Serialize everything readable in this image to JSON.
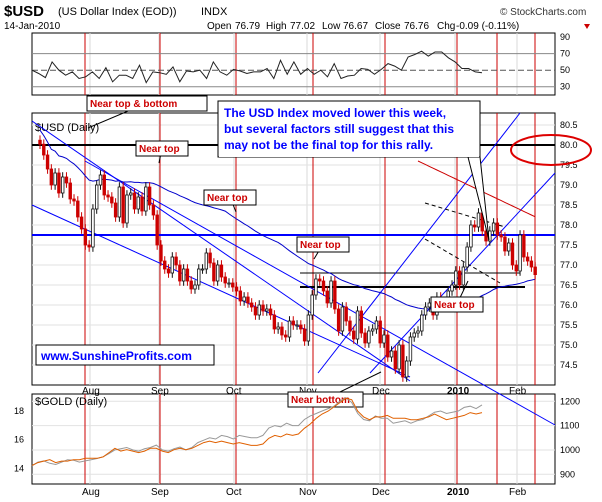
{
  "header": {
    "symbol": "$USD",
    "name": "(US Dollar Index (EOD))",
    "exchange": "INDX",
    "date": "14-Jan-2010",
    "open_label": "Open",
    "open": "76.79",
    "high_label": "High",
    "high": "77.02",
    "low_label": "Low",
    "low": "76.67",
    "close_label": "Close",
    "close": "76.76",
    "chg_label": "Chg",
    "chg": "-0.09 (-0.11%)",
    "copyright": "© StockCharts.com"
  },
  "colors": {
    "up": "#111111",
    "down": "#cc0000",
    "ma_blue": "#0000cc",
    "ma_red": "#cc0000",
    "trend_blue": "#0000ff",
    "annot_red": "#cc0000",
    "gold": "#999999",
    "ratio": "#e06000"
  },
  "chart_data": [
    {
      "type": "line",
      "panel": "rsi",
      "yaxis_ticks": [
        "90",
        "70",
        "50",
        "30"
      ],
      "ylim": [
        20,
        95
      ],
      "values": [
        50,
        46,
        41,
        60,
        50,
        44,
        48,
        40,
        42,
        48,
        40,
        53,
        36,
        44,
        44,
        40,
        56,
        35,
        48,
        47,
        45,
        54,
        36,
        49,
        48,
        50,
        40,
        60,
        48,
        44,
        51,
        49,
        46,
        48,
        48,
        52,
        40,
        62,
        45,
        60,
        45,
        52,
        45,
        50,
        42,
        58,
        40,
        43,
        44,
        52,
        51,
        45,
        51,
        58,
        55,
        50,
        66,
        69,
        73,
        67,
        72,
        72,
        65,
        60,
        52,
        52,
        48,
        47
      ]
    },
    {
      "type": "candlestick",
      "panel": "price",
      "legend": "$USD (Daily)",
      "yaxis_ticks": [
        "80.5",
        "80.0",
        "79.5",
        "79.0",
        "78.5",
        "78.0",
        "77.5",
        "77.0",
        "76.5",
        "76.0",
        "75.5",
        "75.0",
        "74.5"
      ],
      "ylim": [
        74.0,
        80.8
      ],
      "xaxis_ticks": [
        "Aug",
        "Sep",
        "Oct",
        "Nov",
        "Dec",
        "2010",
        "Feb"
      ],
      "closes": [
        80.02,
        79.75,
        79.4,
        79.0,
        79.3,
        78.8,
        79.2,
        79.05,
        78.65,
        78.6,
        78.2,
        77.9,
        77.5,
        77.45,
        78.4,
        79.0,
        79.25,
        78.75,
        78.7,
        78.55,
        78.2,
        78.95,
        78.05,
        78.75,
        78.8,
        78.4,
        78.7,
        78.35,
        78.95,
        78.5,
        78.25,
        77.5,
        77.1,
        76.9,
        76.8,
        77.2,
        77.0,
        76.6,
        76.9,
        76.6,
        76.4,
        76.5,
        76.9,
        76.9,
        77.3,
        77.05,
        76.6,
        77.0,
        76.7,
        76.55,
        76.55,
        76.45,
        76.35,
        76.1,
        76.2,
        76.05,
        75.95,
        75.75,
        76.0,
        75.85,
        75.9,
        75.75,
        75.4,
        75.45,
        75.25,
        75.2,
        75.6,
        75.5,
        75.5,
        75.4,
        75.1,
        75.75,
        76.25,
        76.65,
        76.6,
        76.35,
        76.05,
        76.6,
        75.9,
        75.35,
        75.95,
        75.6,
        75.35,
        75.15,
        75.85,
        75.3,
        75.05,
        75.35,
        75.4,
        75.6,
        75.05,
        75.25,
        74.7,
        74.85,
        74.4,
        75.0,
        74.2,
        74.6,
        75.2,
        75.3,
        75.35,
        75.75,
        75.95,
        76.05,
        75.75,
        76.2,
        75.95,
        76.05,
        76.35,
        76.5,
        76.85,
        76.5,
        76.95,
        77.45,
        78.0,
        77.95,
        78.3,
        77.85,
        77.6,
        77.85,
        78.05,
        77.75,
        77.7,
        77.35,
        77.55,
        77.0,
        76.85,
        77.75,
        77.2,
        77.1,
        76.95,
        76.76
      ],
      "horizontal_lines": [
        80.0,
        77.75,
        76.8,
        76.45
      ],
      "annotations": [
        "Near top & bottom",
        "Near top",
        "Near top",
        "Near top",
        "Near top",
        "Near bottom"
      ],
      "comment": [
        "The USD Index moved lower this week,",
        "but several factors still suggest that this",
        "may not be the final top for this rally."
      ],
      "watermark": "www.SunshineProfits.com"
    },
    {
      "type": "line",
      "panel": "gold",
      "legend": "$GOLD (Daily)",
      "yaxis_ticks": [
        "1200",
        "1100",
        "1000",
        "900"
      ],
      "ylim": [
        860,
        1230
      ],
      "left_ticks": [
        "18",
        "16",
        "14"
      ],
      "left_ylim": [
        12.9,
        19.2
      ],
      "xaxis_ticks": [
        "Aug",
        "Sep",
        "Oct",
        "Nov",
        "Dec",
        "2010",
        "Feb"
      ],
      "series": [
        {
          "values": [
            935,
            950,
            955,
            945,
            940,
            950,
            960,
            958,
            950,
            955,
            960,
            965,
            972,
            985,
            1000,
            1005,
            1010,
            1000,
            995,
            1005,
            1010,
            1020,
            1000,
            995,
            1005,
            1012,
            1000,
            1010,
            1030,
            1040,
            1050,
            1045,
            1060,
            1055,
            1045,
            1060,
            1055,
            1050,
            1050,
            1060,
            1090,
            1100,
            1095,
            1110,
            1100,
            1100,
            1125,
            1140,
            1150,
            1160,
            1170,
            1180,
            1200,
            1215,
            1195,
            1150,
            1125,
            1120,
            1140,
            1130,
            1130,
            1110,
            1115,
            1120,
            1110,
            1120,
            1125,
            1140,
            1155,
            1160,
            1150,
            1155,
            1160,
            1175,
            1180,
            1170,
            1185
          ]
        },
        {
          "values": [
            14.2,
            14.4,
            14.5,
            14.6,
            14.4,
            14.5,
            14.5,
            14.6,
            14.6,
            14.7,
            14.7,
            14.7,
            14.8,
            15.1,
            15.4,
            15.2,
            15.3,
            15.2,
            15.1,
            15.2,
            15.4,
            15.4,
            15.2,
            15.1,
            15.3,
            15.4,
            15.3,
            15.4,
            15.6,
            15.8,
            15.9,
            15.8,
            15.9,
            15.8,
            15.7,
            15.8,
            15.7,
            15.6,
            15.6,
            15.7,
            16.1,
            16.3,
            16.2,
            16.4,
            16.3,
            16.4,
            16.8,
            17.1,
            17.5,
            17.8,
            18.0,
            18.3,
            18.6,
            18.9,
            18.8,
            18.0,
            17.6,
            17.4,
            17.6,
            17.6,
            17.7,
            17.5,
            17.5,
            17.5,
            17.4,
            17.4,
            17.5,
            17.6,
            17.8,
            17.6,
            17.4,
            17.5,
            17.6,
            17.7,
            17.9,
            17.8,
            17.9
          ]
        }
      ]
    }
  ]
}
